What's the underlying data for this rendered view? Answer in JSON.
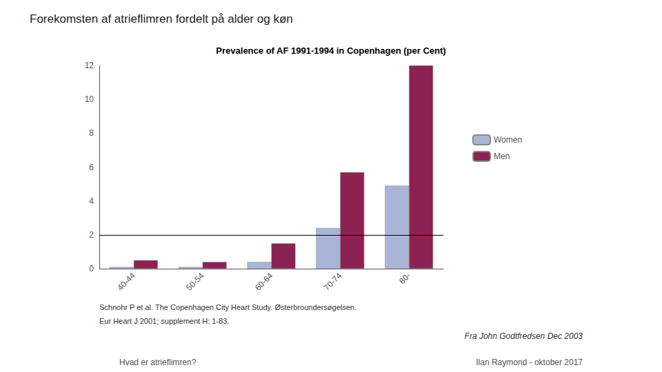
{
  "chart_data": {
    "type": "bar",
    "title": "Forekomsten af atrieflimren fordelt på alder og køn",
    "subtitle": "Prevalence of AF 1991-1994 in Copenhagen (per Cent)",
    "categories": [
      "40-44",
      "50-54",
      "60-64",
      "70-74",
      "80-"
    ],
    "series": [
      {
        "name": "Women",
        "color": "#aab4d8",
        "values": [
          0.1,
          0.1,
          0.4,
          2.4,
          4.9
        ]
      },
      {
        "name": "Men",
        "color": "#8b2252",
        "values": [
          0.5,
          0.4,
          1.5,
          5.7,
          12.0
        ]
      }
    ],
    "reference_line": 2.0,
    "ylim": [
      0,
      12
    ],
    "yticks": [
      0,
      2,
      4,
      6,
      8,
      10,
      12
    ],
    "grid": false,
    "legend": "right",
    "annotations": [
      "Schnohr P et al. The Copenhagen City Heart Study. Østerbroundersøgelsen.",
      "Eur Heart J 2001; supplement H: 1-83.",
      "Fra John Godtfredsen Dec 2003",
      "Hvad er atrieflimren?",
      "Ilan Raymond - oktober 2017"
    ]
  }
}
